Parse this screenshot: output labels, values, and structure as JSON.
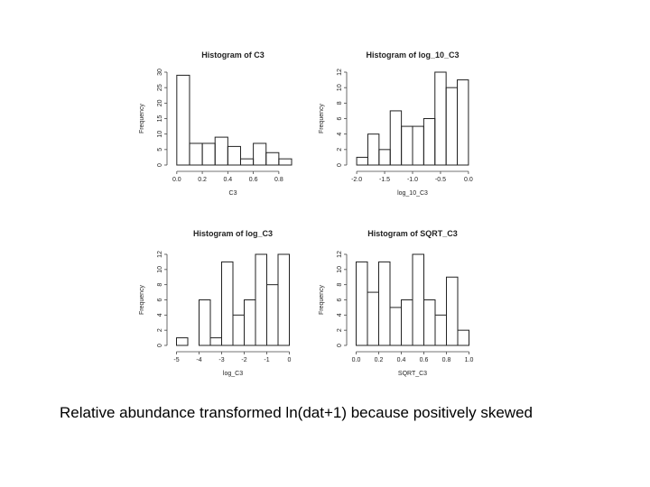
{
  "caption": "Relative abundance transformed ln(dat+1) because positively skewed",
  "chart_data": [
    {
      "type": "bar",
      "title": "Histogram of C3",
      "xlabel": "C3",
      "ylabel": "Frequency",
      "x_ticks": [
        "0.0",
        "0.2",
        "0.4",
        "0.6",
        "0.8"
      ],
      "y_ticks": [
        "0",
        "5",
        "10",
        "15",
        "20",
        "25",
        "30"
      ],
      "xlim": [
        -0.02,
        0.9
      ],
      "ylim": [
        0,
        30
      ],
      "bin_edges": [
        0.0,
        0.1,
        0.2,
        0.3,
        0.4,
        0.5,
        0.6,
        0.7,
        0.8,
        0.9
      ],
      "values": [
        29,
        7,
        7,
        9,
        6,
        2,
        7,
        4,
        2
      ]
    },
    {
      "type": "bar",
      "title": "Histogram of log_10_C3",
      "xlabel": "log_10_C3",
      "ylabel": "Frequency",
      "x_ticks": [
        "-2.0",
        "-1.5",
        "-1.0",
        "-0.5",
        "0.0"
      ],
      "y_ticks": [
        "0",
        "2",
        "4",
        "6",
        "8",
        "10",
        "12"
      ],
      "xlim": [
        -2.05,
        0.05
      ],
      "ylim": [
        0,
        12
      ],
      "bin_edges": [
        -2.0,
        -1.8,
        -1.6,
        -1.4,
        -1.2,
        -1.0,
        -0.8,
        -0.6,
        -0.4,
        -0.2,
        0.0
      ],
      "values": [
        1,
        4,
        2,
        7,
        5,
        5,
        6,
        12,
        10,
        11
      ]
    },
    {
      "type": "bar",
      "title": "Histogram of log_C3",
      "xlabel": "log_C3",
      "ylabel": "Frequency",
      "x_ticks": [
        "-5",
        "-4",
        "-3",
        "-2",
        "-1",
        "0"
      ],
      "y_ticks": [
        "0",
        "2",
        "4",
        "6",
        "8",
        "10",
        "12"
      ],
      "xlim": [
        -5.1,
        0.1
      ],
      "ylim": [
        0,
        12
      ],
      "bin_edges": [
        -5.0,
        -4.5,
        -4.0,
        -3.5,
        -3.0,
        -2.5,
        -2.0,
        -1.5,
        -1.0,
        -0.5,
        0.0
      ],
      "values": [
        1,
        0,
        6,
        1,
        11,
        4,
        6,
        12,
        8,
        12
      ]
    },
    {
      "type": "bar",
      "title": "Histogram of SQRT_C3",
      "xlabel": "SQRT_C3",
      "ylabel": "Frequency",
      "x_ticks": [
        "0.0",
        "0.2",
        "0.4",
        "0.6",
        "0.8",
        "1.0"
      ],
      "y_ticks": [
        "0",
        "2",
        "4",
        "6",
        "8",
        "10",
        "12"
      ],
      "xlim": [
        -0.02,
        1.02
      ],
      "ylim": [
        0,
        12
      ],
      "bin_edges": [
        0.0,
        0.1,
        0.2,
        0.3,
        0.4,
        0.5,
        0.6,
        0.7,
        0.8,
        0.9,
        1.0
      ],
      "values": [
        11,
        7,
        11,
        5,
        6,
        12,
        6,
        4,
        9,
        2
      ]
    }
  ]
}
